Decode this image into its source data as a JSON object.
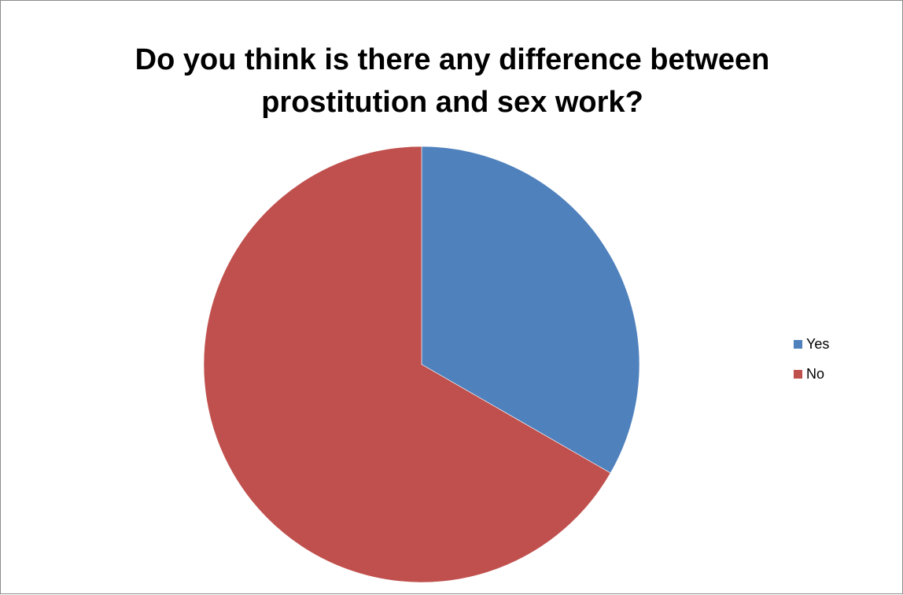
{
  "chart_data": {
    "type": "pie",
    "title_lines": [
      "Do you think is there any difference between",
      "prostitution and sex work?"
    ],
    "categories": [
      "Yes",
      "No"
    ],
    "values": [
      33.3,
      66.7
    ],
    "colors": [
      "#4F81BD",
      "#C0504D"
    ],
    "start_angle": "12 o'clock",
    "direction": "clockwise",
    "legend_position": "right"
  }
}
